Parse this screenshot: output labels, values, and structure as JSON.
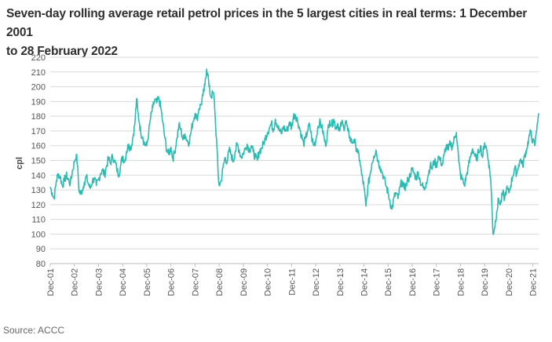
{
  "title_line1": "Seven-day rolling average retail petrol prices in the 5 largest cities in real terms: 1 December 2001",
  "title_line2": "to 28 February 2022",
  "source": "Source: ACCC",
  "chart_data": {
    "type": "line",
    "ylabel": "cpl",
    "xlabel": "",
    "ylim": [
      80,
      220
    ],
    "yticks": [
      80,
      90,
      100,
      110,
      120,
      130,
      140,
      150,
      160,
      170,
      180,
      190,
      200,
      210,
      220
    ],
    "grid": true,
    "line_color": "#2bbbb3",
    "x_range": [
      2001.92,
      2022.16
    ],
    "xticks": [
      {
        "label": "Dec-01",
        "x": 2001.92
      },
      {
        "label": "Dec-02",
        "x": 2002.92
      },
      {
        "label": "Dec-03",
        "x": 2003.92
      },
      {
        "label": "Dec-04",
        "x": 2004.92
      },
      {
        "label": "Dec-05",
        "x": 2005.92
      },
      {
        "label": "Dec-06",
        "x": 2006.92
      },
      {
        "label": "Dec-07",
        "x": 2007.92
      },
      {
        "label": "Dec-08",
        "x": 2008.92
      },
      {
        "label": "Dec-09",
        "x": 2009.92
      },
      {
        "label": "Dec-10",
        "x": 2010.92
      },
      {
        "label": "Dec-11",
        "x": 2011.92
      },
      {
        "label": "Dec-12",
        "x": 2012.92
      },
      {
        "label": "Dec-13",
        "x": 2013.92
      },
      {
        "label": "Dec-14",
        "x": 2014.92
      },
      {
        "label": "Dec-15",
        "x": 2015.92
      },
      {
        "label": "Dec-16",
        "x": 2016.92
      },
      {
        "label": "Dec-17",
        "x": 2017.92
      },
      {
        "label": "Dec-18",
        "x": 2018.92
      },
      {
        "label": "Dec-19",
        "x": 2019.92
      },
      {
        "label": "Dec-20",
        "x": 2020.92
      },
      {
        "label": "Dec-21",
        "x": 2021.92
      }
    ],
    "series": [
      {
        "name": "Seven-day rolling average retail petrol price (cpl, real terms)",
        "points": [
          [
            2001.92,
            132
          ],
          [
            2002.0,
            128
          ],
          [
            2002.08,
            124
          ],
          [
            2002.17,
            136
          ],
          [
            2002.25,
            141
          ],
          [
            2002.33,
            139
          ],
          [
            2002.42,
            133
          ],
          [
            2002.5,
            136
          ],
          [
            2002.58,
            140
          ],
          [
            2002.67,
            137
          ],
          [
            2002.75,
            134
          ],
          [
            2002.83,
            142
          ],
          [
            2002.92,
            149
          ],
          [
            2003.0,
            154
          ],
          [
            2003.05,
            147
          ],
          [
            2003.1,
            131
          ],
          [
            2003.17,
            127
          ],
          [
            2003.25,
            130
          ],
          [
            2003.33,
            135
          ],
          [
            2003.42,
            139
          ],
          [
            2003.5,
            134
          ],
          [
            2003.58,
            131
          ],
          [
            2003.67,
            136
          ],
          [
            2003.75,
            138
          ],
          [
            2003.83,
            133
          ],
          [
            2003.92,
            137
          ],
          [
            2004.0,
            141
          ],
          [
            2004.08,
            144
          ],
          [
            2004.17,
            140
          ],
          [
            2004.25,
            146
          ],
          [
            2004.33,
            151
          ],
          [
            2004.42,
            148
          ],
          [
            2004.5,
            153
          ],
          [
            2004.58,
            150
          ],
          [
            2004.67,
            145
          ],
          [
            2004.75,
            140
          ],
          [
            2004.83,
            146
          ],
          [
            2004.92,
            153
          ],
          [
            2005.0,
            149
          ],
          [
            2005.08,
            156
          ],
          [
            2005.17,
            161
          ],
          [
            2005.25,
            158
          ],
          [
            2005.33,
            164
          ],
          [
            2005.42,
            174
          ],
          [
            2005.5,
            192
          ],
          [
            2005.55,
            183
          ],
          [
            2005.62,
            175
          ],
          [
            2005.67,
            169
          ],
          [
            2005.75,
            166
          ],
          [
            2005.83,
            161
          ],
          [
            2005.92,
            160
          ],
          [
            2006.0,
            169
          ],
          [
            2006.08,
            179
          ],
          [
            2006.17,
            186
          ],
          [
            2006.25,
            191
          ],
          [
            2006.33,
            189
          ],
          [
            2006.42,
            192
          ],
          [
            2006.5,
            186
          ],
          [
            2006.58,
            176
          ],
          [
            2006.67,
            165
          ],
          [
            2006.75,
            157
          ],
          [
            2006.83,
            154
          ],
          [
            2006.92,
            159
          ],
          [
            2007.0,
            151
          ],
          [
            2007.08,
            156
          ],
          [
            2007.17,
            165
          ],
          [
            2007.25,
            174
          ],
          [
            2007.33,
            171
          ],
          [
            2007.42,
            164
          ],
          [
            2007.5,
            168
          ],
          [
            2007.58,
            164
          ],
          [
            2007.67,
            162
          ],
          [
            2007.75,
            169
          ],
          [
            2007.83,
            176
          ],
          [
            2007.92,
            182
          ],
          [
            2008.0,
            178
          ],
          [
            2008.08,
            185
          ],
          [
            2008.17,
            188
          ],
          [
            2008.25,
            194
          ],
          [
            2008.33,
            201
          ],
          [
            2008.4,
            212
          ],
          [
            2008.45,
            209
          ],
          [
            2008.5,
            200
          ],
          [
            2008.58,
            193
          ],
          [
            2008.67,
            196
          ],
          [
            2008.72,
            191
          ],
          [
            2008.77,
            175
          ],
          [
            2008.83,
            158
          ],
          [
            2008.88,
            140
          ],
          [
            2008.92,
            133
          ],
          [
            2009.0,
            136
          ],
          [
            2009.08,
            145
          ],
          [
            2009.17,
            152
          ],
          [
            2009.25,
            149
          ],
          [
            2009.33,
            157
          ],
          [
            2009.42,
            154
          ],
          [
            2009.5,
            149
          ],
          [
            2009.58,
            156
          ],
          [
            2009.67,
            161
          ],
          [
            2009.75,
            157
          ],
          [
            2009.83,
            152
          ],
          [
            2009.92,
            155
          ],
          [
            2010.0,
            158
          ],
          [
            2010.08,
            161
          ],
          [
            2010.17,
            157
          ],
          [
            2010.25,
            160
          ],
          [
            2010.33,
            156
          ],
          [
            2010.42,
            152
          ],
          [
            2010.5,
            150
          ],
          [
            2010.58,
            156
          ],
          [
            2010.67,
            158
          ],
          [
            2010.75,
            161
          ],
          [
            2010.83,
            165
          ],
          [
            2010.92,
            169
          ],
          [
            2011.0,
            172
          ],
          [
            2011.08,
            175
          ],
          [
            2011.17,
            171
          ],
          [
            2011.25,
            178
          ],
          [
            2011.33,
            174
          ],
          [
            2011.42,
            170
          ],
          [
            2011.5,
            168
          ],
          [
            2011.58,
            173
          ],
          [
            2011.67,
            170
          ],
          [
            2011.75,
            171
          ],
          [
            2011.83,
            176
          ],
          [
            2011.92,
            172
          ],
          [
            2012.0,
            180
          ],
          [
            2012.08,
            181
          ],
          [
            2012.17,
            177
          ],
          [
            2012.25,
            172
          ],
          [
            2012.33,
            167
          ],
          [
            2012.42,
            161
          ],
          [
            2012.5,
            165
          ],
          [
            2012.58,
            170
          ],
          [
            2012.67,
            174
          ],
          [
            2012.75,
            166
          ],
          [
            2012.83,
            160
          ],
          [
            2012.92,
            163
          ],
          [
            2013.0,
            172
          ],
          [
            2013.08,
            176
          ],
          [
            2013.17,
            173
          ],
          [
            2013.25,
            167
          ],
          [
            2013.33,
            160
          ],
          [
            2013.42,
            170
          ],
          [
            2013.5,
            177
          ],
          [
            2013.58,
            174
          ],
          [
            2013.67,
            178
          ],
          [
            2013.75,
            172
          ],
          [
            2013.83,
            175
          ],
          [
            2013.92,
            170
          ],
          [
            2014.0,
            176
          ],
          [
            2014.08,
            172
          ],
          [
            2014.17,
            177
          ],
          [
            2014.25,
            170
          ],
          [
            2014.33,
            166
          ],
          [
            2014.42,
            162
          ],
          [
            2014.5,
            164
          ],
          [
            2014.58,
            160
          ],
          [
            2014.67,
            155
          ],
          [
            2014.75,
            150
          ],
          [
            2014.83,
            140
          ],
          [
            2014.92,
            132
          ],
          [
            2015.0,
            119
          ],
          [
            2015.05,
            126
          ],
          [
            2015.1,
            134
          ],
          [
            2015.17,
            140
          ],
          [
            2015.25,
            148
          ],
          [
            2015.33,
            153
          ],
          [
            2015.42,
            157
          ],
          [
            2015.5,
            150
          ],
          [
            2015.58,
            146
          ],
          [
            2015.67,
            142
          ],
          [
            2015.75,
            138
          ],
          [
            2015.83,
            133
          ],
          [
            2015.92,
            128
          ],
          [
            2016.0,
            122
          ],
          [
            2016.08,
            117
          ],
          [
            2016.17,
            125
          ],
          [
            2016.25,
            128
          ],
          [
            2016.33,
            124
          ],
          [
            2016.42,
            132
          ],
          [
            2016.5,
            136
          ],
          [
            2016.58,
            131
          ],
          [
            2016.67,
            133
          ],
          [
            2016.75,
            137
          ],
          [
            2016.83,
            140
          ],
          [
            2016.92,
            144
          ],
          [
            2017.0,
            141
          ],
          [
            2017.08,
            138
          ],
          [
            2017.17,
            142
          ],
          [
            2017.25,
            136
          ],
          [
            2017.33,
            133
          ],
          [
            2017.42,
            130
          ],
          [
            2017.5,
            135
          ],
          [
            2017.58,
            140
          ],
          [
            2017.67,
            147
          ],
          [
            2017.75,
            144
          ],
          [
            2017.83,
            150
          ],
          [
            2017.92,
            146
          ],
          [
            2018.0,
            153
          ],
          [
            2018.08,
            150
          ],
          [
            2018.17,
            147
          ],
          [
            2018.25,
            154
          ],
          [
            2018.33,
            160
          ],
          [
            2018.42,
            157
          ],
          [
            2018.5,
            162
          ],
          [
            2018.58,
            159
          ],
          [
            2018.67,
            165
          ],
          [
            2018.75,
            169
          ],
          [
            2018.8,
            160
          ],
          [
            2018.85,
            149
          ],
          [
            2018.92,
            140
          ],
          [
            2019.0,
            137
          ],
          [
            2019.08,
            133
          ],
          [
            2019.17,
            140
          ],
          [
            2019.25,
            146
          ],
          [
            2019.33,
            152
          ],
          [
            2019.42,
            158
          ],
          [
            2019.5,
            154
          ],
          [
            2019.58,
            150
          ],
          [
            2019.67,
            156
          ],
          [
            2019.75,
            160
          ],
          [
            2019.83,
            152
          ],
          [
            2019.92,
            162
          ],
          [
            2020.0,
            158
          ],
          [
            2020.08,
            150
          ],
          [
            2020.17,
            138
          ],
          [
            2020.22,
            120
          ],
          [
            2020.27,
            100
          ],
          [
            2020.33,
            104
          ],
          [
            2020.42,
            115
          ],
          [
            2020.5,
            124
          ],
          [
            2020.58,
            120
          ],
          [
            2020.67,
            128
          ],
          [
            2020.75,
            124
          ],
          [
            2020.83,
            131
          ],
          [
            2020.92,
            128
          ],
          [
            2021.0,
            133
          ],
          [
            2021.08,
            139
          ],
          [
            2021.17,
            145
          ],
          [
            2021.25,
            141
          ],
          [
            2021.33,
            147
          ],
          [
            2021.42,
            151
          ],
          [
            2021.5,
            146
          ],
          [
            2021.58,
            153
          ],
          [
            2021.67,
            158
          ],
          [
            2021.75,
            165
          ],
          [
            2021.83,
            169
          ],
          [
            2021.92,
            163
          ],
          [
            2022.0,
            160
          ],
          [
            2022.05,
            167
          ],
          [
            2022.1,
            175
          ],
          [
            2022.16,
            182
          ]
        ]
      }
    ]
  }
}
